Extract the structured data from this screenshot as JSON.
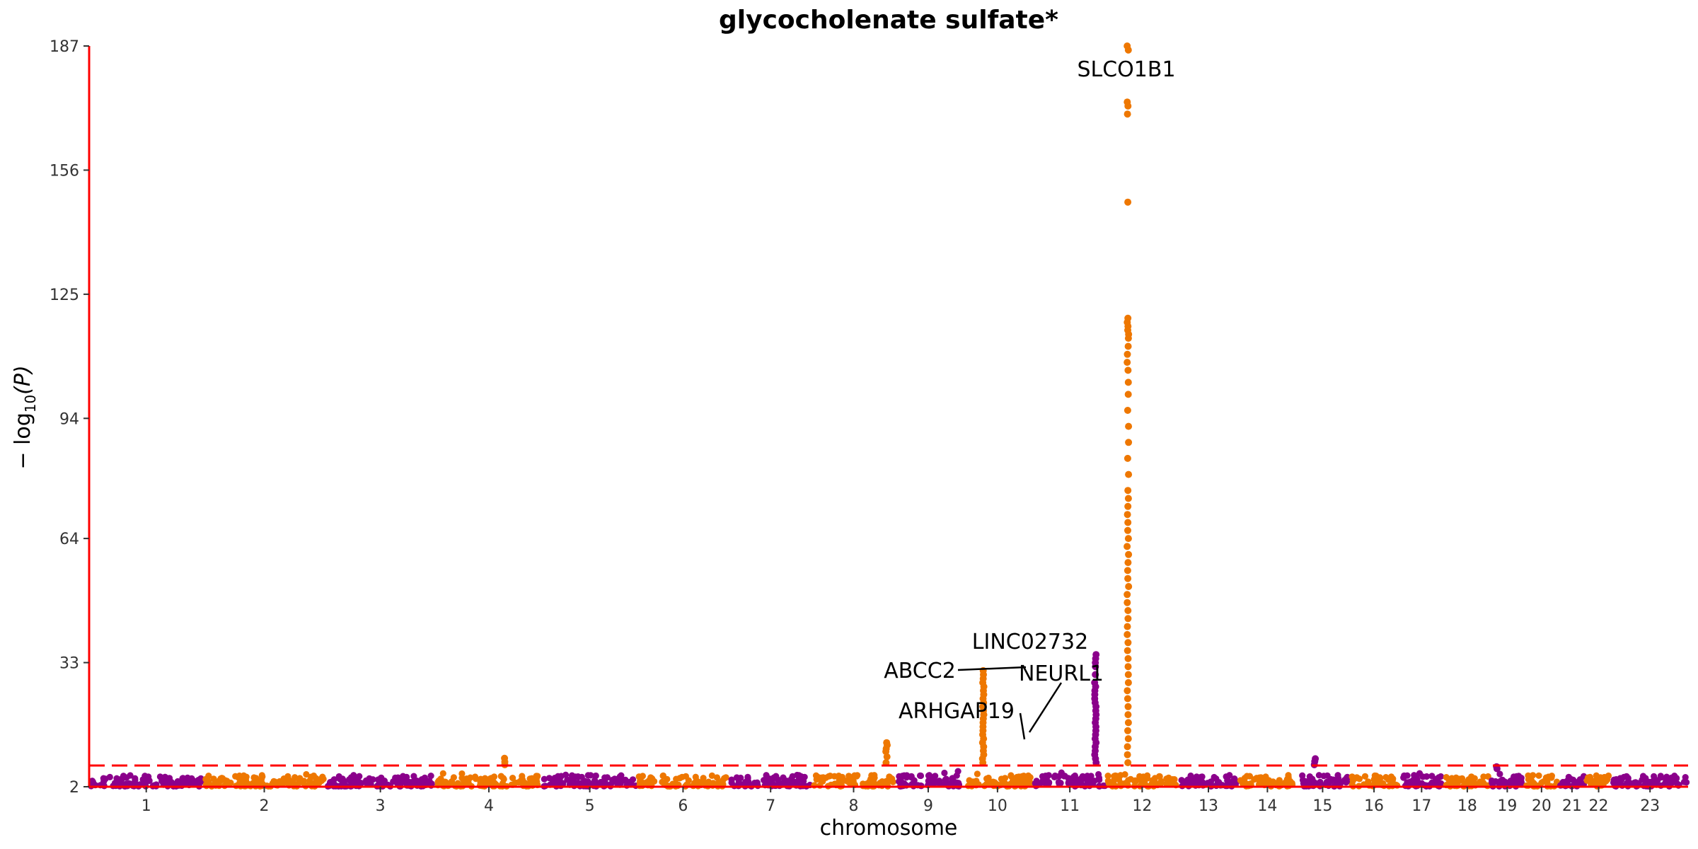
{
  "chart_data": {
    "type": "scatter",
    "subtype": "manhattan",
    "title": "glycocholenate sulfate*",
    "xlabel": "chromosome",
    "ylabel": "−log10(P)",
    "ylabel_parts": {
      "prefix": "− log",
      "subscript": "10",
      "suffix": "(P)"
    },
    "ylim": [
      2,
      187
    ],
    "yticks": [
      2,
      33,
      64,
      94,
      125,
      156,
      187
    ],
    "significance_line": 7.3,
    "colors": {
      "odd_chromosome": "#8B008B",
      "even_chromosome": "#EE7700",
      "threshold": "#FF0000",
      "axis": "#FF0000"
    },
    "chromosomes": [
      {
        "label": "1",
        "start": 0.0,
        "end": 1.5
      },
      {
        "label": "2",
        "start": 1.5,
        "end": 3.1
      },
      {
        "label": "3",
        "start": 3.1,
        "end": 4.55
      },
      {
        "label": "4",
        "start": 4.55,
        "end": 5.95
      },
      {
        "label": "5",
        "start": 5.95,
        "end": 7.2
      },
      {
        "label": "6",
        "start": 7.2,
        "end": 8.4
      },
      {
        "label": "7",
        "start": 8.4,
        "end": 9.5
      },
      {
        "label": "8",
        "start": 9.5,
        "end": 10.58
      },
      {
        "label": "9",
        "start": 10.58,
        "end": 11.46
      },
      {
        "label": "10",
        "start": 11.46,
        "end": 12.4
      },
      {
        "label": "11",
        "start": 12.4,
        "end": 13.36
      },
      {
        "label": "12",
        "start": 13.36,
        "end": 14.3
      },
      {
        "label": "13",
        "start": 14.3,
        "end": 15.1
      },
      {
        "label": "14",
        "start": 15.1,
        "end": 15.85
      },
      {
        "label": "15",
        "start": 15.85,
        "end": 16.55
      },
      {
        "label": "16",
        "start": 16.55,
        "end": 17.2
      },
      {
        "label": "17",
        "start": 17.2,
        "end": 17.8
      },
      {
        "label": "18",
        "start": 17.8,
        "end": 18.4
      },
      {
        "label": "19",
        "start": 18.4,
        "end": 18.85
      },
      {
        "label": "20",
        "start": 18.85,
        "end": 19.3
      },
      {
        "label": "21",
        "start": 19.3,
        "end": 19.65
      },
      {
        "label": "22",
        "start": 19.65,
        "end": 20.0
      },
      {
        "label": "23",
        "start": 20.0,
        "end": 21.0
      }
    ],
    "peaks": [
      {
        "chrom": "4",
        "pos": 0.65,
        "values": [
          7.5,
          8.2,
          9.1
        ]
      },
      {
        "chrom": "8",
        "pos": 0.9,
        "values": [
          8.0,
          9.5,
          10.8,
          11.5,
          12.4,
          13.0
        ]
      },
      {
        "chrom": "10",
        "pos": 0.3,
        "values": [
          8,
          9,
          10,
          11,
          12,
          13,
          14,
          15,
          16,
          17,
          18,
          19,
          20,
          21,
          22,
          23,
          24,
          25,
          26,
          27,
          28,
          29,
          30,
          31
        ]
      },
      {
        "chrom": "11",
        "pos": 0.85,
        "values": [
          8,
          9,
          10,
          11,
          12,
          13,
          14,
          15,
          16,
          17,
          18,
          19,
          20,
          21,
          22,
          23,
          24,
          25,
          26,
          27,
          28,
          30,
          32,
          33,
          34,
          35
        ]
      },
      {
        "chrom": "12",
        "pos": 0.3,
        "values": [
          8,
          10,
          12,
          14,
          16,
          18,
          20,
          22,
          24,
          26,
          28,
          30,
          32,
          34,
          36,
          38,
          40,
          42,
          44,
          46,
          48,
          50,
          52,
          54,
          56,
          58,
          60,
          62,
          64,
          66,
          68,
          70,
          72,
          74,
          76,
          80,
          84,
          88,
          92,
          96,
          100,
          103,
          106,
          108,
          110,
          112,
          114,
          115,
          116,
          117,
          118,
          119,
          148,
          170,
          172,
          173,
          186,
          187
        ]
      },
      {
        "chrom": "15",
        "pos": 0.35,
        "values": [
          7.5,
          8.3,
          9.0
        ]
      },
      {
        "chrom": "19",
        "pos": 0.2,
        "values": [
          6.5,
          7.0
        ]
      }
    ],
    "annotations": [
      {
        "label": "SLCO1B1",
        "chrom": "12"
      },
      {
        "label": "LINC02732",
        "chrom": "10"
      },
      {
        "label": "ABCC2",
        "chrom": "10"
      },
      {
        "label": "NEURL1",
        "chrom": "10"
      },
      {
        "label": "ARHGAP19",
        "chrom": "10"
      }
    ]
  }
}
